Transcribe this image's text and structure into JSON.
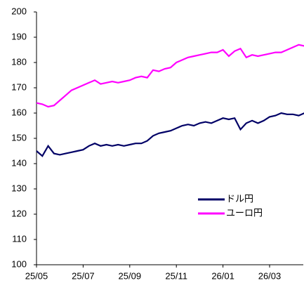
{
  "chart_data": {
    "type": "line",
    "x": [
      0,
      0.25,
      0.5,
      0.75,
      1,
      1.25,
      1.5,
      1.75,
      2,
      2.25,
      2.5,
      2.75,
      3,
      3.25,
      3.5,
      3.75,
      4,
      4.25,
      4.5,
      4.75,
      5,
      5.25,
      5.5,
      5.75,
      6,
      6.25,
      6.5,
      6.75,
      7,
      7.25,
      7.5,
      7.75,
      8,
      8.25,
      8.5,
      8.75,
      9,
      9.25,
      9.5,
      9.75,
      10,
      10.25,
      10.5,
      10.75,
      11,
      11.25,
      11.5
    ],
    "series": [
      {
        "name": "ドル円",
        "color": "#000066",
        "values": [
          145,
          143,
          147,
          144,
          143.5,
          144,
          144.5,
          145,
          145.5,
          147,
          148,
          147,
          147.5,
          147,
          147.5,
          147,
          147.5,
          148,
          148,
          149,
          151,
          152,
          152.5,
          153,
          154,
          155,
          155.5,
          155,
          156,
          156.5,
          156,
          157,
          158,
          157.5,
          158,
          153.5,
          156,
          157,
          156,
          157,
          158.5,
          159,
          160,
          159.5,
          159.5,
          159,
          160
        ]
      },
      {
        "name": "ユーロ円",
        "color": "#ff00ff",
        "values": [
          164,
          163.5,
          162.5,
          163,
          165,
          167,
          169,
          170,
          171,
          172,
          173,
          171.5,
          172,
          172.5,
          172,
          172.5,
          173,
          174,
          174.5,
          174,
          177,
          176.5,
          177.5,
          178,
          180,
          181,
          182,
          182.5,
          183,
          183.5,
          184,
          184,
          185,
          182.5,
          184.5,
          185.5,
          182,
          183,
          182.5,
          183,
          183.5,
          184,
          184,
          185,
          186,
          187,
          186.5
        ]
      }
    ],
    "xlim": [
      0,
      11.5
    ],
    "xticks": [
      {
        "value": 0,
        "label": "25/05"
      },
      {
        "value": 2,
        "label": "25/07"
      },
      {
        "value": 4,
        "label": "25/09"
      },
      {
        "value": 6,
        "label": "25/11"
      },
      {
        "value": 8,
        "label": "26/01"
      },
      {
        "value": 10,
        "label": "26/03"
      }
    ],
    "ylim": [
      100,
      200
    ],
    "yticks": [
      100,
      110,
      120,
      130,
      140,
      150,
      160,
      170,
      180,
      190,
      200
    ],
    "legend": "lower-right"
  }
}
